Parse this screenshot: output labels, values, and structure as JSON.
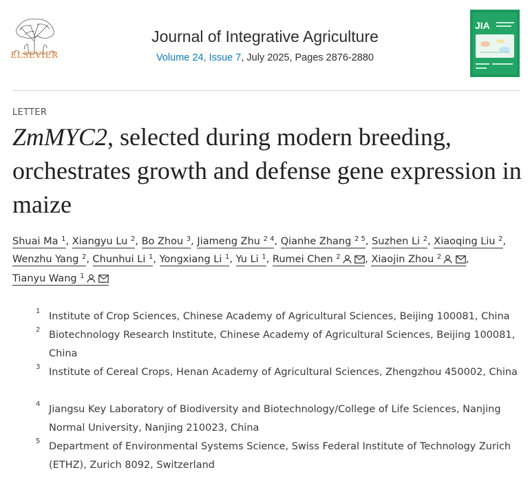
{
  "publisher": {
    "name": "ELSEVIER"
  },
  "journal": {
    "title": "Journal of Integrative Agriculture",
    "volume_issue": "Volume 24, Issue 7",
    "date_pages": ", July 2025, Pages 2876-2880",
    "cover_abbrev": "JIA"
  },
  "article": {
    "label": "LETTER",
    "title_italic": "ZmMYC2",
    "title_rest": ", selected during modern breeding, orchestrates growth and defense gene expression in maize",
    "authors": [
      {
        "name": "Shuai Ma",
        "sup": "1"
      },
      {
        "name": "Xiangyu Lu",
        "sup": "2"
      },
      {
        "name": "Bo Zhou",
        "sup": "3"
      },
      {
        "name": "Jiameng Zhu",
        "sup": "2 4"
      },
      {
        "name": "Qianhe Zhang",
        "sup": "2 5"
      },
      {
        "name": "Suzhen Li",
        "sup": "2"
      },
      {
        "name": "Xiaoqing Liu",
        "sup": "2"
      },
      {
        "name": "Wenzhu Yang",
        "sup": "2"
      },
      {
        "name": "Chunhui Li",
        "sup": "1"
      },
      {
        "name": "Yongxiang Li",
        "sup": "1"
      },
      {
        "name": "Yu Li",
        "sup": "1"
      },
      {
        "name": "Rumei Chen",
        "sup": "2"
      },
      {
        "name": "Xiaojin Zhou",
        "sup": "2"
      },
      {
        "name": "Tianyu Wang",
        "sup": "1"
      }
    ],
    "separator": ",",
    "affiliations": [
      {
        "num": "1",
        "text": "Institute of Crop Sciences, Chinese Academy of Agricultural Sciences, Beijing 100081, China"
      },
      {
        "num": "2",
        "text": "Biotechnology Research Institute, Chinese Academy of Agricultural Sciences, Beijing 100081, China"
      },
      {
        "num": "3",
        "text": "Institute of Cereal Crops, Henan Academy of Agricultural Sciences, Zhengzhou 450002, China"
      },
      {
        "num": "4",
        "text": "Jiangsu Key Laboratory of Biodiversity and Biotechnology/College of Life Sciences, Nanjing Normal University, Nanjing 210023, China"
      },
      {
        "num": "5",
        "text": "Department of Environmental Systems Science, Swiss Federal Institute of Technology Zurich (ETHZ), Zurich 8092, Switzerland"
      }
    ]
  },
  "colors": {
    "link": "#0c7dbb",
    "elsevier_orange": "#e9711c",
    "cover_green": "#1d9a5e"
  },
  "icons": [
    "elsevier-tree-logo",
    "person-icon",
    "envelope-icon",
    "journal-cover-image"
  ]
}
